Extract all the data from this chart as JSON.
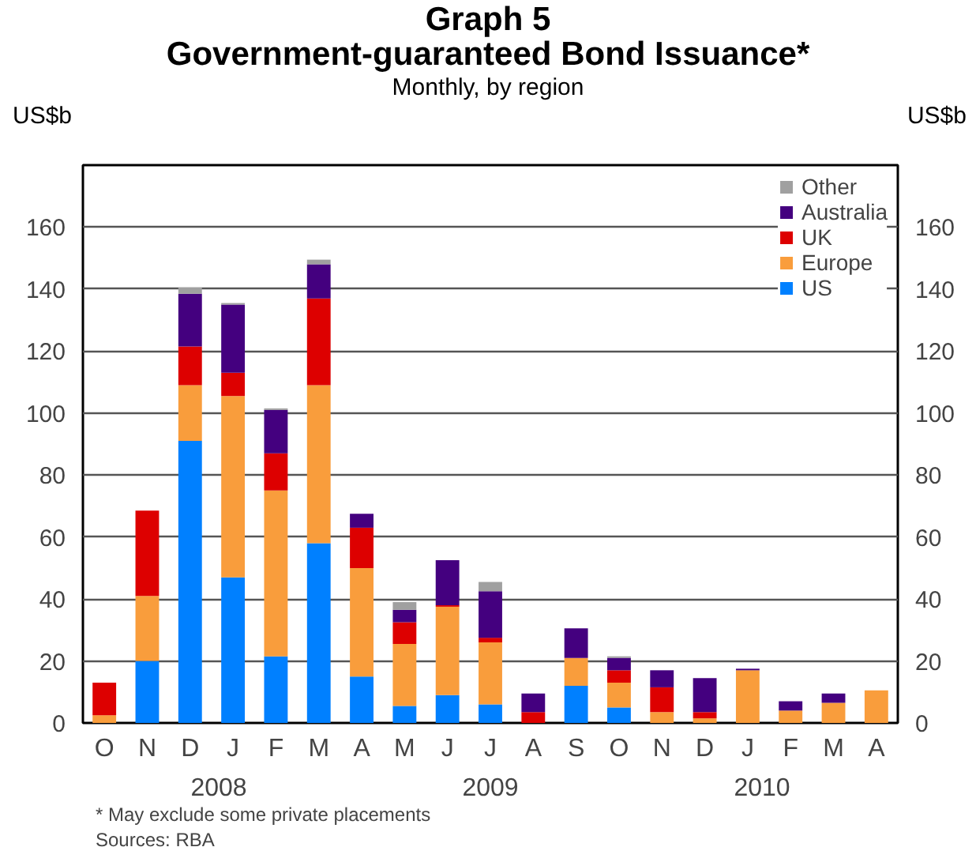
{
  "chart_data": {
    "type": "bar",
    "stacked": true,
    "title": "Graph 5\nGovernment-guaranteed Bond Issuance*",
    "subtitle": "Monthly, by region",
    "ylabel": "US$b",
    "y2label": "US$b",
    "categories": [
      "O",
      "N",
      "D",
      "J",
      "F",
      "M",
      "A",
      "M",
      "J",
      "J",
      "A",
      "S",
      "O",
      "N",
      "D",
      "J",
      "F",
      "M",
      "A"
    ],
    "ylim": [
      0,
      180
    ],
    "yticks": [
      0,
      20,
      40,
      60,
      80,
      100,
      120,
      140,
      160
    ],
    "y2lim": [
      0,
      180
    ],
    "y2ticks": [
      0,
      20,
      40,
      60,
      80,
      100,
      120,
      140,
      160
    ],
    "grid": "y",
    "legend": "top right",
    "series": [
      {
        "name": "US",
        "color": "#0080ff",
        "values": [
          0,
          20,
          91,
          47,
          21.5,
          58,
          15,
          5.5,
          9,
          6,
          0,
          12,
          5,
          0,
          0,
          0,
          0,
          0,
          0
        ]
      },
      {
        "name": "Europe",
        "color": "#f99d3c",
        "values": [
          2.5,
          21,
          18,
          58.5,
          53.5,
          51,
          35,
          20,
          28.5,
          20,
          0,
          9,
          8,
          3.5,
          1.5,
          17,
          4,
          6.5,
          10.5
        ]
      },
      {
        "name": "UK",
        "color": "#dd0000",
        "values": [
          10.5,
          27.5,
          12.5,
          7.5,
          12,
          28,
          13,
          7,
          0.5,
          1.5,
          3.5,
          0,
          4,
          8,
          2,
          0,
          0,
          0,
          0
        ]
      },
      {
        "name": "Australia",
        "color": "#44007f",
        "values": [
          0,
          0,
          17,
          22,
          14,
          11,
          4.5,
          4,
          14.5,
          15,
          6,
          9.5,
          4,
          5.5,
          11,
          0.5,
          3,
          3,
          0
        ]
      },
      {
        "name": "Other",
        "color": "#a0a0a0",
        "values": [
          0,
          0,
          2,
          0.5,
          0.5,
          1.5,
          0,
          2.5,
          0,
          3,
          0,
          0,
          0.5,
          0,
          0,
          0,
          0,
          0,
          0
        ]
      }
    ],
    "annotations": [
      "2008",
      "2009",
      "2010",
      "*   May exclude some private placements",
      "Sources: RBA"
    ]
  }
}
